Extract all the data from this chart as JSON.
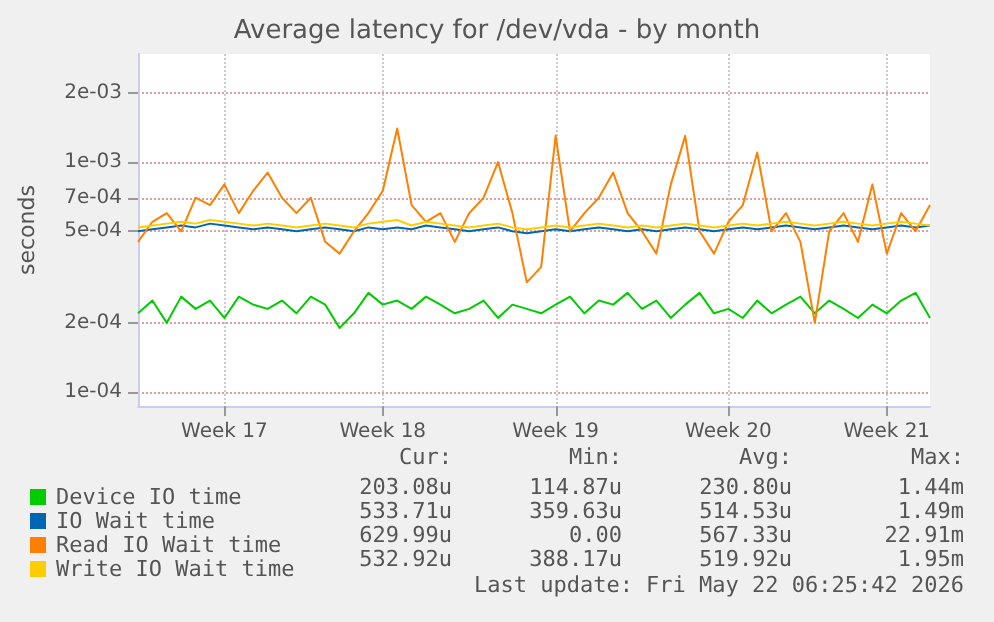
{
  "chart_data": {
    "type": "line",
    "title": "Average latency for /dev/vda - by month",
    "ylabel": "seconds",
    "categories": [
      null,
      null,
      null,
      null,
      null,
      null,
      "Week 17",
      null,
      null,
      null,
      null,
      null,
      null,
      null,
      null,
      null,
      null,
      "Week 18",
      null,
      null,
      null,
      null,
      null,
      null,
      null,
      null,
      null,
      null,
      null,
      "Week 19",
      null,
      null,
      null,
      null,
      null,
      null,
      null,
      null,
      null,
      null,
      null,
      "Week 20",
      null,
      null,
      null,
      null,
      null,
      null,
      null,
      null,
      null,
      null,
      "Week 21",
      null,
      null,
      null
    ],
    "log": "y",
    "ylim": [
      8.7e-05,
      0.00295
    ],
    "yticks": [
      {
        "value": 0.0001,
        "label": "1e-04"
      },
      {
        "value": 0.0002,
        "label": "2e-04"
      },
      {
        "value": 0.0005,
        "label": "5e-04"
      },
      {
        "value": 0.0007,
        "label": "7e-04"
      },
      {
        "value": 0.001,
        "label": "1e-03"
      },
      {
        "value": 0.002,
        "label": "2e-03"
      }
    ],
    "grid": true,
    "legend": "bottom left",
    "marker": "none",
    "line_style": "solid",
    "series": [
      {
        "name": "Device IO time",
        "color": "#00cc00",
        "values": [
          0.00022,
          0.00025,
          0.0002,
          0.00026,
          0.00023,
          0.00025,
          0.00021,
          0.00026,
          0.00024,
          0.00023,
          0.00025,
          0.00022,
          0.00026,
          0.00024,
          0.00019,
          0.00022,
          0.00027,
          0.00024,
          0.00025,
          0.00023,
          0.00026,
          0.00024,
          0.00022,
          0.00023,
          0.00025,
          0.00021,
          0.00024,
          0.00023,
          0.00022,
          0.00024,
          0.00026,
          0.00022,
          0.00025,
          0.00024,
          0.00027,
          0.00023,
          0.00025,
          0.00021,
          0.00024,
          0.00027,
          0.00022,
          0.00023,
          0.00021,
          0.00025,
          0.00022,
          0.00024,
          0.00026,
          0.00022,
          0.00025,
          0.00023,
          0.00021,
          0.00024,
          0.00022,
          0.00025,
          0.00027,
          0.00021
        ]
      },
      {
        "name": "IO Wait time",
        "color": "#0066b3",
        "values": [
          0.0005,
          0.00051,
          0.00052,
          0.00053,
          0.00052,
          0.00054,
          0.00053,
          0.00052,
          0.00051,
          0.00052,
          0.00051,
          0.0005,
          0.00051,
          0.00052,
          0.00051,
          0.0005,
          0.00052,
          0.00051,
          0.00052,
          0.00051,
          0.00053,
          0.00052,
          0.00051,
          0.0005,
          0.00051,
          0.00052,
          0.0005,
          0.00049,
          0.0005,
          0.00051,
          0.0005,
          0.00051,
          0.00052,
          0.00051,
          0.0005,
          0.00051,
          0.0005,
          0.00051,
          0.00052,
          0.00051,
          0.0005,
          0.00051,
          0.00052,
          0.00051,
          0.00052,
          0.00053,
          0.00052,
          0.00051,
          0.00052,
          0.00053,
          0.00052,
          0.00051,
          0.00052,
          0.00053,
          0.00052,
          0.00053
        ]
      },
      {
        "name": "Read IO Wait time",
        "color": "#ff8000",
        "values": [
          0.00045,
          0.00055,
          0.0006,
          0.0005,
          0.0007,
          0.00065,
          0.0008,
          0.0006,
          0.00075,
          0.0009,
          0.0007,
          0.0006,
          0.0007,
          0.00045,
          0.0004,
          0.0005,
          0.0006,
          0.00075,
          0.0014,
          0.00065,
          0.00055,
          0.0006,
          0.00045,
          0.0006,
          0.0007,
          0.001,
          0.0006,
          0.0003,
          0.00035,
          0.0013,
          0.0005,
          0.0006,
          0.0007,
          0.0009,
          0.0006,
          0.0005,
          0.0004,
          0.0008,
          0.0013,
          0.0005,
          0.0004,
          0.00055,
          0.00065,
          0.0011,
          0.0005,
          0.0006,
          0.00045,
          0.0002,
          0.0005,
          0.0006,
          0.00045,
          0.0008,
          0.0004,
          0.0006,
          0.0005,
          0.00065
        ]
      },
      {
        "name": "Write IO Wait time",
        "color": "#ffcc00",
        "values": [
          0.00052,
          0.00053,
          0.00054,
          0.00055,
          0.00054,
          0.00056,
          0.00055,
          0.00054,
          0.00053,
          0.00054,
          0.00053,
          0.00052,
          0.00053,
          0.00054,
          0.00053,
          0.00052,
          0.00054,
          0.00055,
          0.00056,
          0.00053,
          0.00055,
          0.00054,
          0.00053,
          0.00052,
          0.00053,
          0.00054,
          0.00052,
          0.00051,
          0.00052,
          0.00053,
          0.00052,
          0.00053,
          0.00054,
          0.00053,
          0.00052,
          0.00053,
          0.00052,
          0.00053,
          0.00054,
          0.00053,
          0.00052,
          0.00053,
          0.00054,
          0.00053,
          0.00054,
          0.00055,
          0.00054,
          0.00053,
          0.00054,
          0.00055,
          0.00054,
          0.00053,
          0.00054,
          0.00055,
          0.00054,
          0.00053
        ]
      }
    ],
    "annotations": [
      "Cur:",
      "Min:",
      "Avg:",
      "Max:",
      "203.08u",
      "114.87u",
      "230.80u",
      "1.44m",
      "533.71u",
      "359.63u",
      "514.53u",
      "1.49m",
      "629.99u",
      "0.00",
      "567.33u",
      "22.91m",
      "532.92u",
      "388.17u",
      "519.92u",
      "1.95m",
      "Last update: Fri May 22 06:25:42 2026"
    ]
  }
}
